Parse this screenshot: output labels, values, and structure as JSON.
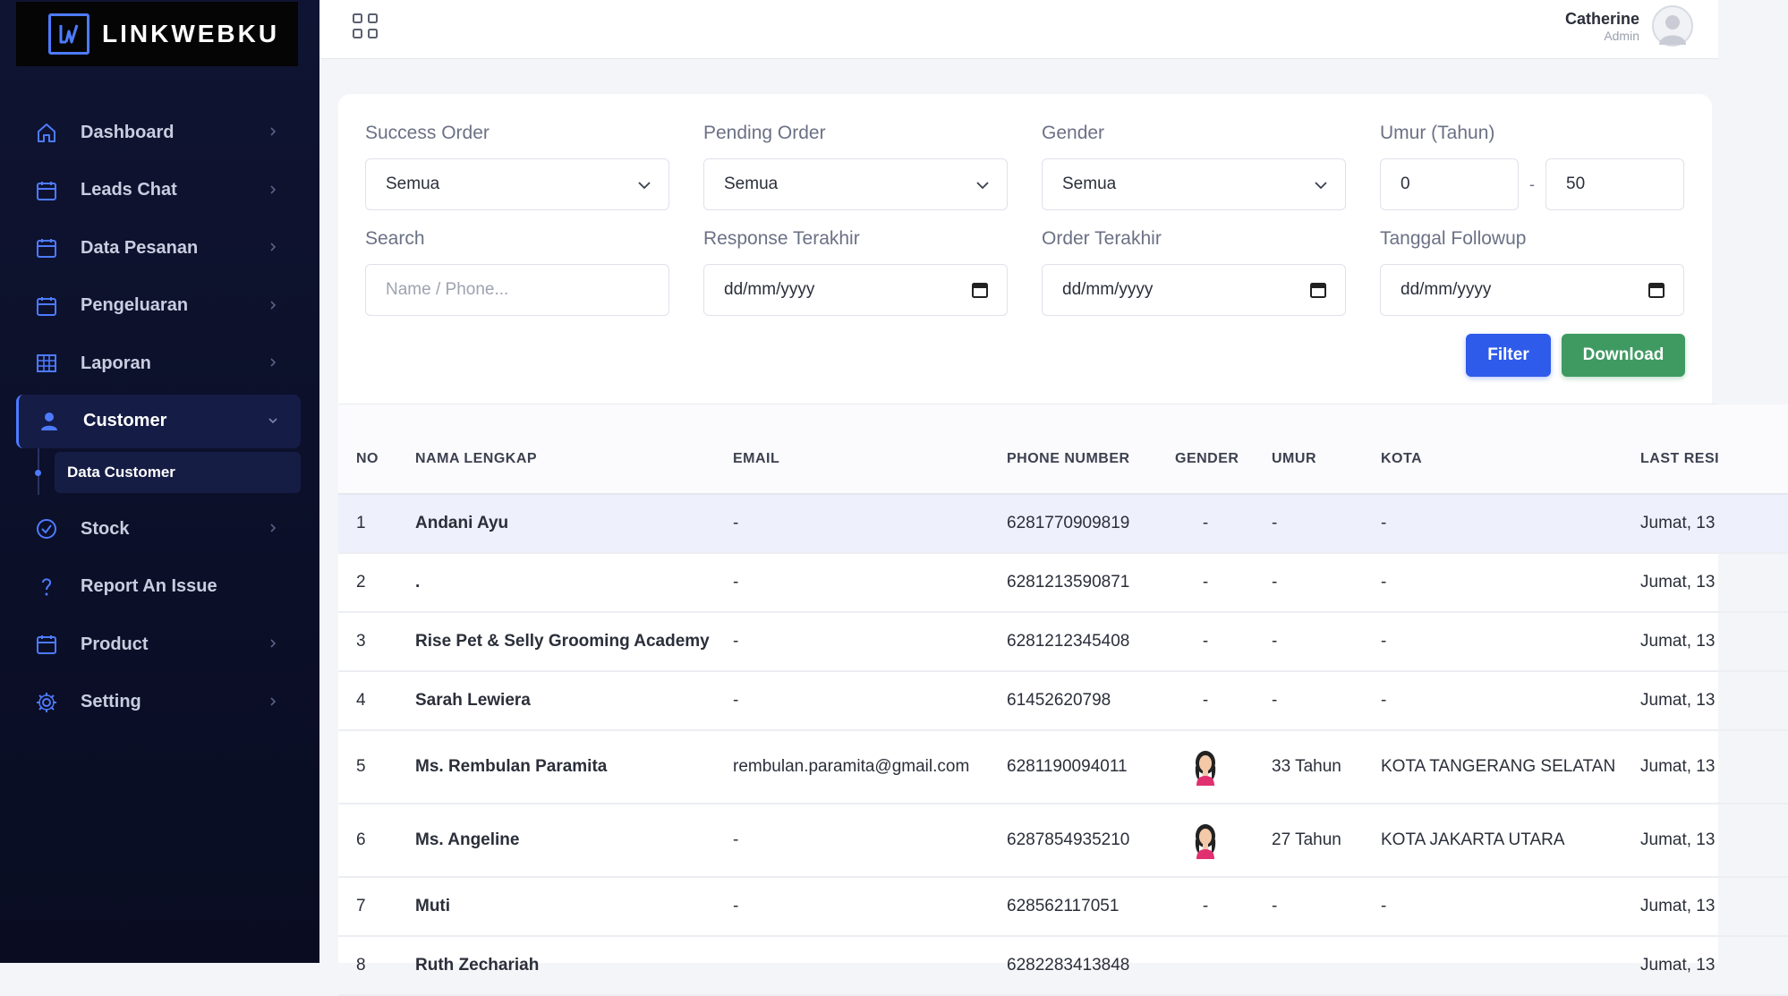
{
  "brand": {
    "name": "LINKWEBKU",
    "accent": "#4d7bff"
  },
  "sidebar": {
    "items": [
      {
        "label": "Dashboard",
        "icon": "home-icon"
      },
      {
        "label": "Leads Chat",
        "icon": "calendar-icon"
      },
      {
        "label": "Data Pesanan",
        "icon": "calendar-icon"
      },
      {
        "label": "Pengeluaran",
        "icon": "calendar-icon"
      },
      {
        "label": "Laporan",
        "icon": "table-icon"
      },
      {
        "label": "Customer",
        "icon": "user-icon",
        "active": true
      },
      {
        "label": "Stock",
        "icon": "check-circle-icon"
      },
      {
        "label": "Report An Issue",
        "icon": "question-icon"
      },
      {
        "label": "Product",
        "icon": "calendar-icon"
      },
      {
        "label": "Setting",
        "icon": "gear-icon"
      }
    ],
    "sub_item": "Data Customer"
  },
  "user": {
    "name": "Catherine",
    "role": "Admin"
  },
  "filters": {
    "success_order": {
      "label": "Success Order",
      "value": "Semua"
    },
    "pending_order": {
      "label": "Pending Order",
      "value": "Semua"
    },
    "gender": {
      "label": "Gender",
      "value": "Semua"
    },
    "umur": {
      "label": "Umur (Tahun)",
      "min": "0",
      "separator": "-",
      "max": "50"
    },
    "search": {
      "label": "Search",
      "placeholder": "Name / Phone..."
    },
    "response_terakhir": {
      "label": "Response Terakhir",
      "placeholder": "dd/mm/yyyy"
    },
    "order_terakhir": {
      "label": "Order Terakhir",
      "placeholder": "dd/mm/yyyy"
    },
    "tanggal_followup": {
      "label": "Tanggal Followup",
      "placeholder": "dd/mm/yyyy"
    },
    "filter_button": "Filter",
    "download_button": "Download"
  },
  "table": {
    "headers": [
      "NO",
      "NAMA LENGKAP",
      "EMAIL",
      "PHONE NUMBER",
      "GENDER",
      "UMUR",
      "KOTA",
      "LAST RESI"
    ],
    "rows": [
      {
        "no": "1",
        "name": "Andani Ayu",
        "email": "-",
        "phone": "6281770909819",
        "gender": "-",
        "umur": "-",
        "kota": "-",
        "last": "Jumat, 13"
      },
      {
        "no": "2",
        "name": ".",
        "email": "-",
        "phone": "6281213590871",
        "gender": "-",
        "umur": "-",
        "kota": "-",
        "last": "Jumat, 13"
      },
      {
        "no": "3",
        "name": "Rise Pet & Selly Grooming Academy",
        "email": "-",
        "phone": "6281212345408",
        "gender": "-",
        "umur": "-",
        "kota": "-",
        "last": "Jumat, 13"
      },
      {
        "no": "4",
        "name": "Sarah Lewiera",
        "email": "-",
        "phone": "61452620798",
        "gender": "-",
        "umur": "-",
        "kota": "-",
        "last": "Jumat, 13"
      },
      {
        "no": "5",
        "name": "Ms. Rembulan Paramita",
        "email": "rembulan.paramita@gmail.com",
        "phone": "6281190094011",
        "gender": "female-icon",
        "umur": "33 Tahun",
        "kota": "KOTA TANGERANG SELATAN",
        "last": "Jumat, 13"
      },
      {
        "no": "6",
        "name": "Ms. Angeline",
        "email": "-",
        "phone": "6287854935210",
        "gender": "female-icon",
        "umur": "27 Tahun",
        "kota": "KOTA JAKARTA UTARA",
        "last": "Jumat, 13"
      },
      {
        "no": "7",
        "name": "Muti",
        "email": "-",
        "phone": "628562117051",
        "gender": "-",
        "umur": "-",
        "kota": "-",
        "last": "Jumat, 13"
      },
      {
        "no": "8",
        "name": "Ruth Zechariah",
        "email": "",
        "phone": "6282283413848",
        "gender": "",
        "umur": "",
        "kota": "",
        "last": "Jumat, 13"
      }
    ]
  }
}
